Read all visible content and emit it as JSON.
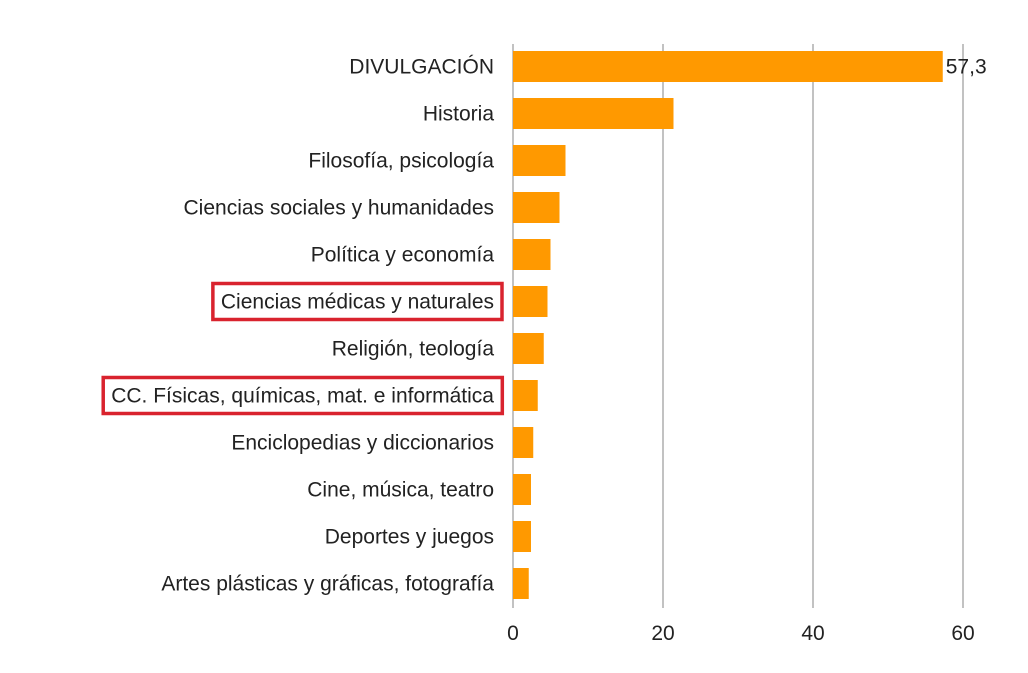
{
  "chart_data": {
    "type": "bar",
    "orientation": "horizontal",
    "categories": [
      "DIVULGACIÓN",
      "Historia",
      "Filosofía, psicología",
      "Ciencias sociales y humanidades",
      "Política y economía",
      "Ciencias médicas y naturales",
      "Religión, teología",
      "CC. Físicas, químicas, mat. e informática",
      "Enciclopedias y diccionarios",
      "Cine, música, teatro",
      "Deportes y juegos",
      "Artes plásticas y gráficas, fotografía"
    ],
    "values": [
      57.3,
      21.4,
      7.0,
      6.2,
      5.0,
      4.6,
      4.1,
      3.3,
      2.7,
      2.4,
      2.4,
      2.1
    ],
    "data_labels": [
      {
        "index": 0,
        "text": "57,3"
      }
    ],
    "highlighted": [
      5,
      7
    ],
    "xlim": [
      0,
      60
    ],
    "xticks": [
      0,
      20,
      40,
      60
    ],
    "xtick_labels": [
      "0",
      "20",
      "40",
      "60"
    ],
    "grid": "vertical",
    "title": "",
    "xlabel": "",
    "ylabel": "",
    "colors": {
      "bar": "#FF9900",
      "grid": "#9a9a9a",
      "highlight_box": "#d9232e",
      "text": "#222222"
    }
  }
}
